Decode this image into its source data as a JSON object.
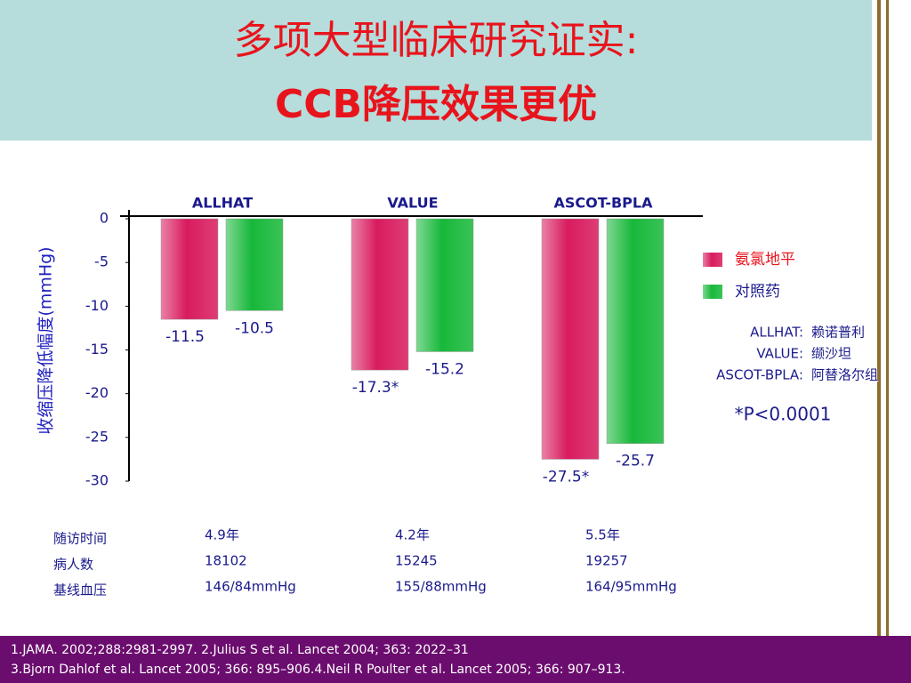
{
  "chart_data": {
    "type": "bar",
    "title": "多项大型临床研究证实:",
    "subtitle": "CCB降压效果更优",
    "y_label": "收缩压降低幅度(mmHg)",
    "categories": [
      "ALLHAT",
      "VALUE",
      "ASCOT-BPLA"
    ],
    "series": [
      {
        "name": "氨氯地平",
        "color": "#d81b5e",
        "values": [
          -11.5,
          -17.3,
          -27.5
        ],
        "value_labels": [
          "-11.5",
          "-17.3*",
          "-27.5*"
        ]
      },
      {
        "name": "对照药",
        "color": "#17b83a",
        "values": [
          -10.5,
          -15.2,
          -25.7
        ]
      }
    ],
    "ylim": [
      -30,
      0
    ],
    "yticks": [
      0,
      -5,
      -10,
      -15,
      -20,
      -25,
      -30
    ],
    "legend": "right"
  },
  "drug_notes": [
    [
      "ALLHAT:",
      "赖诺普利"
    ],
    [
      "VALUE:",
      "缬沙坦"
    ],
    [
      "ASCOT-BPLA:",
      "阿替洛尔组"
    ]
  ],
  "p_value": "*P<0.0001",
  "table": {
    "row_labels": [
      "随访时间",
      "病人数",
      "基线血压"
    ],
    "columns": [
      [
        "4.9年",
        "18102",
        "146/84mmHg"
      ],
      [
        "4.2年",
        "15245",
        "155/88mmHg"
      ],
      [
        "5.5年",
        "19257",
        "164/95mmHg"
      ]
    ]
  },
  "footnotes": [
    "1.JAMA. 2002;288:2981-2997. 2.Julius S et al. Lancet 2004; 363: 2022–31",
    "3.Bjorn Dahlof et al. Lancet 2005; 366: 895–906.4.Neil R Poulter et al. Lancet 2005; 366: 907–913."
  ]
}
